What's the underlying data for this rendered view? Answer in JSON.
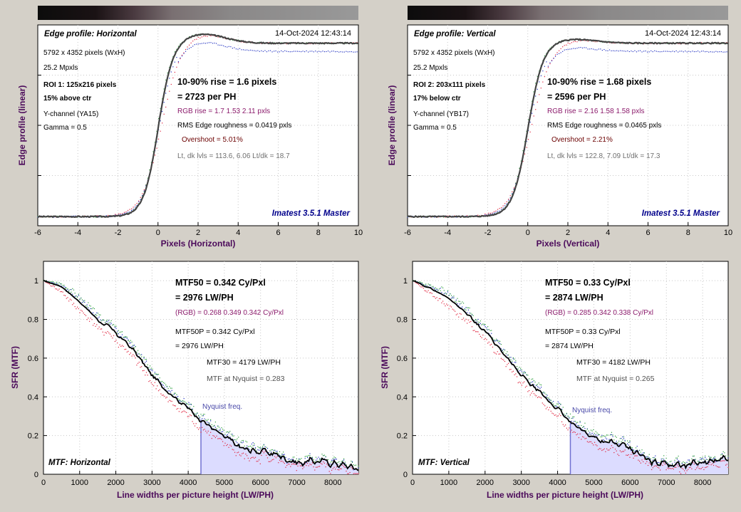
{
  "panels": [
    {
      "id": "edge-h",
      "kind": "edge",
      "panel_title": "Edge profile: Horizontal",
      "timestamp": "14-Oct-2024 12:43:14",
      "info_lines": [
        "5792 x 4352 pixels (WxH)",
        "25.2 Mpxls"
      ],
      "roi_lines": [
        "ROI 1:  125x216 pixels",
        "15% above ctr"
      ],
      "channel_lines": [
        "Y-channel  (YA15)",
        "Gamma = 0.5"
      ],
      "main_lines": [
        "10-90% rise = 1.6 pixels",
        "= 2723 per PH"
      ],
      "rgb_line": "RGB rise = 1.7  1.53  2.11 pxls",
      "roughness_line": "RMS Edge roughness = 0.0419 pxls",
      "overshoot_line": "Overshoot = 5.01%",
      "levels_line": "Lt, dk lvls = 113.6, 6.06   Lt/dk = 18.7",
      "brand": "Imatest 3.5.1 Master",
      "xlabel": "Pixels (Horizontal)",
      "ylabel": "Edge profile (linear)"
    },
    {
      "id": "edge-v",
      "kind": "edge",
      "panel_title": "Edge profile: Vertical",
      "timestamp": "14-Oct-2024 12:43:14",
      "info_lines": [
        "5792 x 4352 pixels (WxH)",
        "25.2 Mpxls"
      ],
      "roi_lines": [
        "ROI 2:  203x111 pixels",
        "17% below ctr"
      ],
      "channel_lines": [
        "Y-channel  (YB17)",
        "Gamma = 0.5"
      ],
      "main_lines": [
        "10-90% rise = 1.68 pixels",
        "= 2596 per PH"
      ],
      "rgb_line": "RGB rise = 2.16  1.58  1.58 pxls",
      "roughness_line": "RMS Edge roughness = 0.0465 pxls",
      "overshoot_line": "Overshoot = 2.21%",
      "levels_line": "Lt, dk lvls = 122.8, 7.09   Lt/dk = 17.3",
      "brand": "Imatest 3.5.1 Master",
      "xlabel": "Pixels (Vertical)",
      "ylabel": "Edge profile (linear)"
    },
    {
      "id": "mtf-h",
      "kind": "mtf",
      "panel_title": "MTF: Horizontal",
      "main_lines": [
        "MTF50 = 0.342 Cy/Pxl",
        "= 2976 LW/PH"
      ],
      "rgb_line": "(RGB) = 0.268  0.349  0.342 Cy/Pxl",
      "p_lines": [
        "MTF50P = 0.342 Cy/Pxl",
        "= 2976 LW/PH"
      ],
      "mtf30_lines": [
        "MTF30 = 4179 LW/PH",
        "MTF at Nyquist = 0.283"
      ],
      "nyquist_label": "Nyquist freq.",
      "xlabel": "Line widths per picture height (LW/PH)",
      "ylabel": "SFR (MTF)"
    },
    {
      "id": "mtf-v",
      "kind": "mtf",
      "panel_title": "MTF: Vertical",
      "main_lines": [
        "MTF50 = 0.33 Cy/Pxl",
        "= 2874 LW/PH"
      ],
      "rgb_line": "(RGB) = 0.285  0.342  0.338 Cy/Pxl",
      "p_lines": [
        "MTF50P = 0.33 Cy/Pxl",
        "= 2874 LW/PH"
      ],
      "mtf30_lines": [
        "MTF30 = 4182 LW/PH",
        "MTF at Nyquist = 0.265"
      ],
      "nyquist_label": "Nyquist freq.",
      "xlabel": "Line widths per picture height (LW/PH)",
      "ylabel": "SFR (MTF)"
    }
  ],
  "colors": {
    "background": "#d4d0c8",
    "plot_bg": "#ffffff",
    "grid": "#c8c8c8",
    "label_purple": "#4b0a5a",
    "brand_blue": "#00008b",
    "rgb_purple": "#8b1a6b",
    "overshoot": "#6b0000",
    "levels_gray": "#707070",
    "curve": "#444444",
    "mtf_curve": "#000000",
    "red_dots": "#e0203a",
    "blue_dots": "#2030c0",
    "green_dots": "#30a040",
    "nyquist_fill": "#dcdcff",
    "nyquist_line": "#7070d0",
    "nyquist_text": "#4848a8"
  },
  "chart_data": [
    {
      "type": "line",
      "id": "edge-h",
      "x_ticks": [
        -6,
        -4,
        -2,
        0,
        2,
        4,
        6,
        8,
        10
      ],
      "xlim": [
        -6,
        10
      ],
      "ylim": [
        0,
        1.1
      ],
      "dark_level": 0.05,
      "light_level": 1.0,
      "edge_center": 0.0,
      "rise_pixels": 1.6,
      "overshoot_pct": 5.01,
      "grid": true,
      "series": [
        {
          "role": "luminance",
          "color": "#444444"
        },
        {
          "role": "red",
          "color": "#e0203a"
        },
        {
          "role": "green",
          "color": "#30a040"
        },
        {
          "role": "blue",
          "color": "#2030c0"
        }
      ]
    },
    {
      "type": "line",
      "id": "edge-v",
      "x_ticks": [
        -6,
        -4,
        -2,
        0,
        2,
        4,
        6,
        8,
        10
      ],
      "xlim": [
        -6,
        10
      ],
      "ylim": [
        0,
        1.1
      ],
      "dark_level": 0.05,
      "light_level": 1.0,
      "edge_center": 0.0,
      "rise_pixels": 1.68,
      "overshoot_pct": 2.21,
      "grid": true,
      "series": [
        {
          "role": "luminance",
          "color": "#444444"
        },
        {
          "role": "red",
          "color": "#e0203a"
        },
        {
          "role": "green",
          "color": "#30a040"
        },
        {
          "role": "blue",
          "color": "#2030c0"
        }
      ]
    },
    {
      "type": "line",
      "id": "mtf-h",
      "x_ticks": [
        0,
        1000,
        2000,
        3000,
        4000,
        5000,
        6000,
        7000,
        8000
      ],
      "y_ticks": [
        0,
        0.2,
        0.4,
        0.6,
        0.8,
        1
      ],
      "xlim": [
        0,
        8704
      ],
      "ylim": [
        0,
        1.1
      ],
      "nyquist_x": 4352,
      "grid": true,
      "x": [
        0,
        500,
        1000,
        1500,
        2000,
        2500,
        3000,
        3500,
        4000,
        4352,
        5000,
        5500,
        6000,
        6500,
        7000,
        7500,
        8000,
        8704
      ],
      "y": [
        1.0,
        0.97,
        0.89,
        0.8,
        0.73,
        0.64,
        0.51,
        0.42,
        0.34,
        0.283,
        0.19,
        0.13,
        0.12,
        0.1,
        0.06,
        0.07,
        0.06,
        0.03
      ]
    },
    {
      "type": "line",
      "id": "mtf-v",
      "x_ticks": [
        0,
        1000,
        2000,
        3000,
        4000,
        5000,
        6000,
        7000,
        8000
      ],
      "y_ticks": [
        0,
        0.2,
        0.4,
        0.6,
        0.8,
        1
      ],
      "xlim": [
        0,
        8704
      ],
      "ylim": [
        0,
        1.1
      ],
      "nyquist_x": 4352,
      "grid": true,
      "x": [
        0,
        500,
        1000,
        1500,
        2000,
        2500,
        3000,
        3500,
        4000,
        4352,
        5000,
        5500,
        6000,
        6500,
        7000,
        7500,
        8000,
        8704
      ],
      "y": [
        1.0,
        0.96,
        0.91,
        0.83,
        0.74,
        0.62,
        0.51,
        0.42,
        0.34,
        0.265,
        0.19,
        0.16,
        0.13,
        0.07,
        0.06,
        0.05,
        0.06,
        0.08
      ]
    }
  ]
}
